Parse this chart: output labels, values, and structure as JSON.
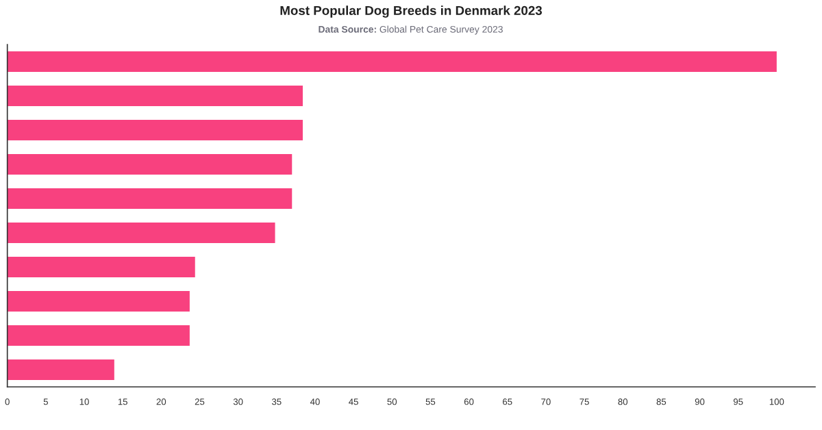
{
  "chart_data": {
    "type": "bar",
    "orientation": "horizontal",
    "title": "Most Popular Dog Breeds in Denmark 2023",
    "subtitle": "Data Source: Global Pet Care Survey 2023",
    "categories": [
      null,
      null,
      null,
      null,
      null,
      null,
      null,
      null,
      null,
      null
    ],
    "values": [
      100,
      38.4,
      38.4,
      37.0,
      37.0,
      34.8,
      24.4,
      23.7,
      23.7,
      13.9
    ],
    "color": "#f8417f",
    "xlim": [
      0,
      105
    ],
    "xticks": [
      0,
      5,
      10,
      15,
      20,
      25,
      30,
      35,
      40,
      45,
      50,
      55,
      60,
      65,
      70,
      75,
      80,
      85,
      90,
      95,
      100
    ]
  }
}
